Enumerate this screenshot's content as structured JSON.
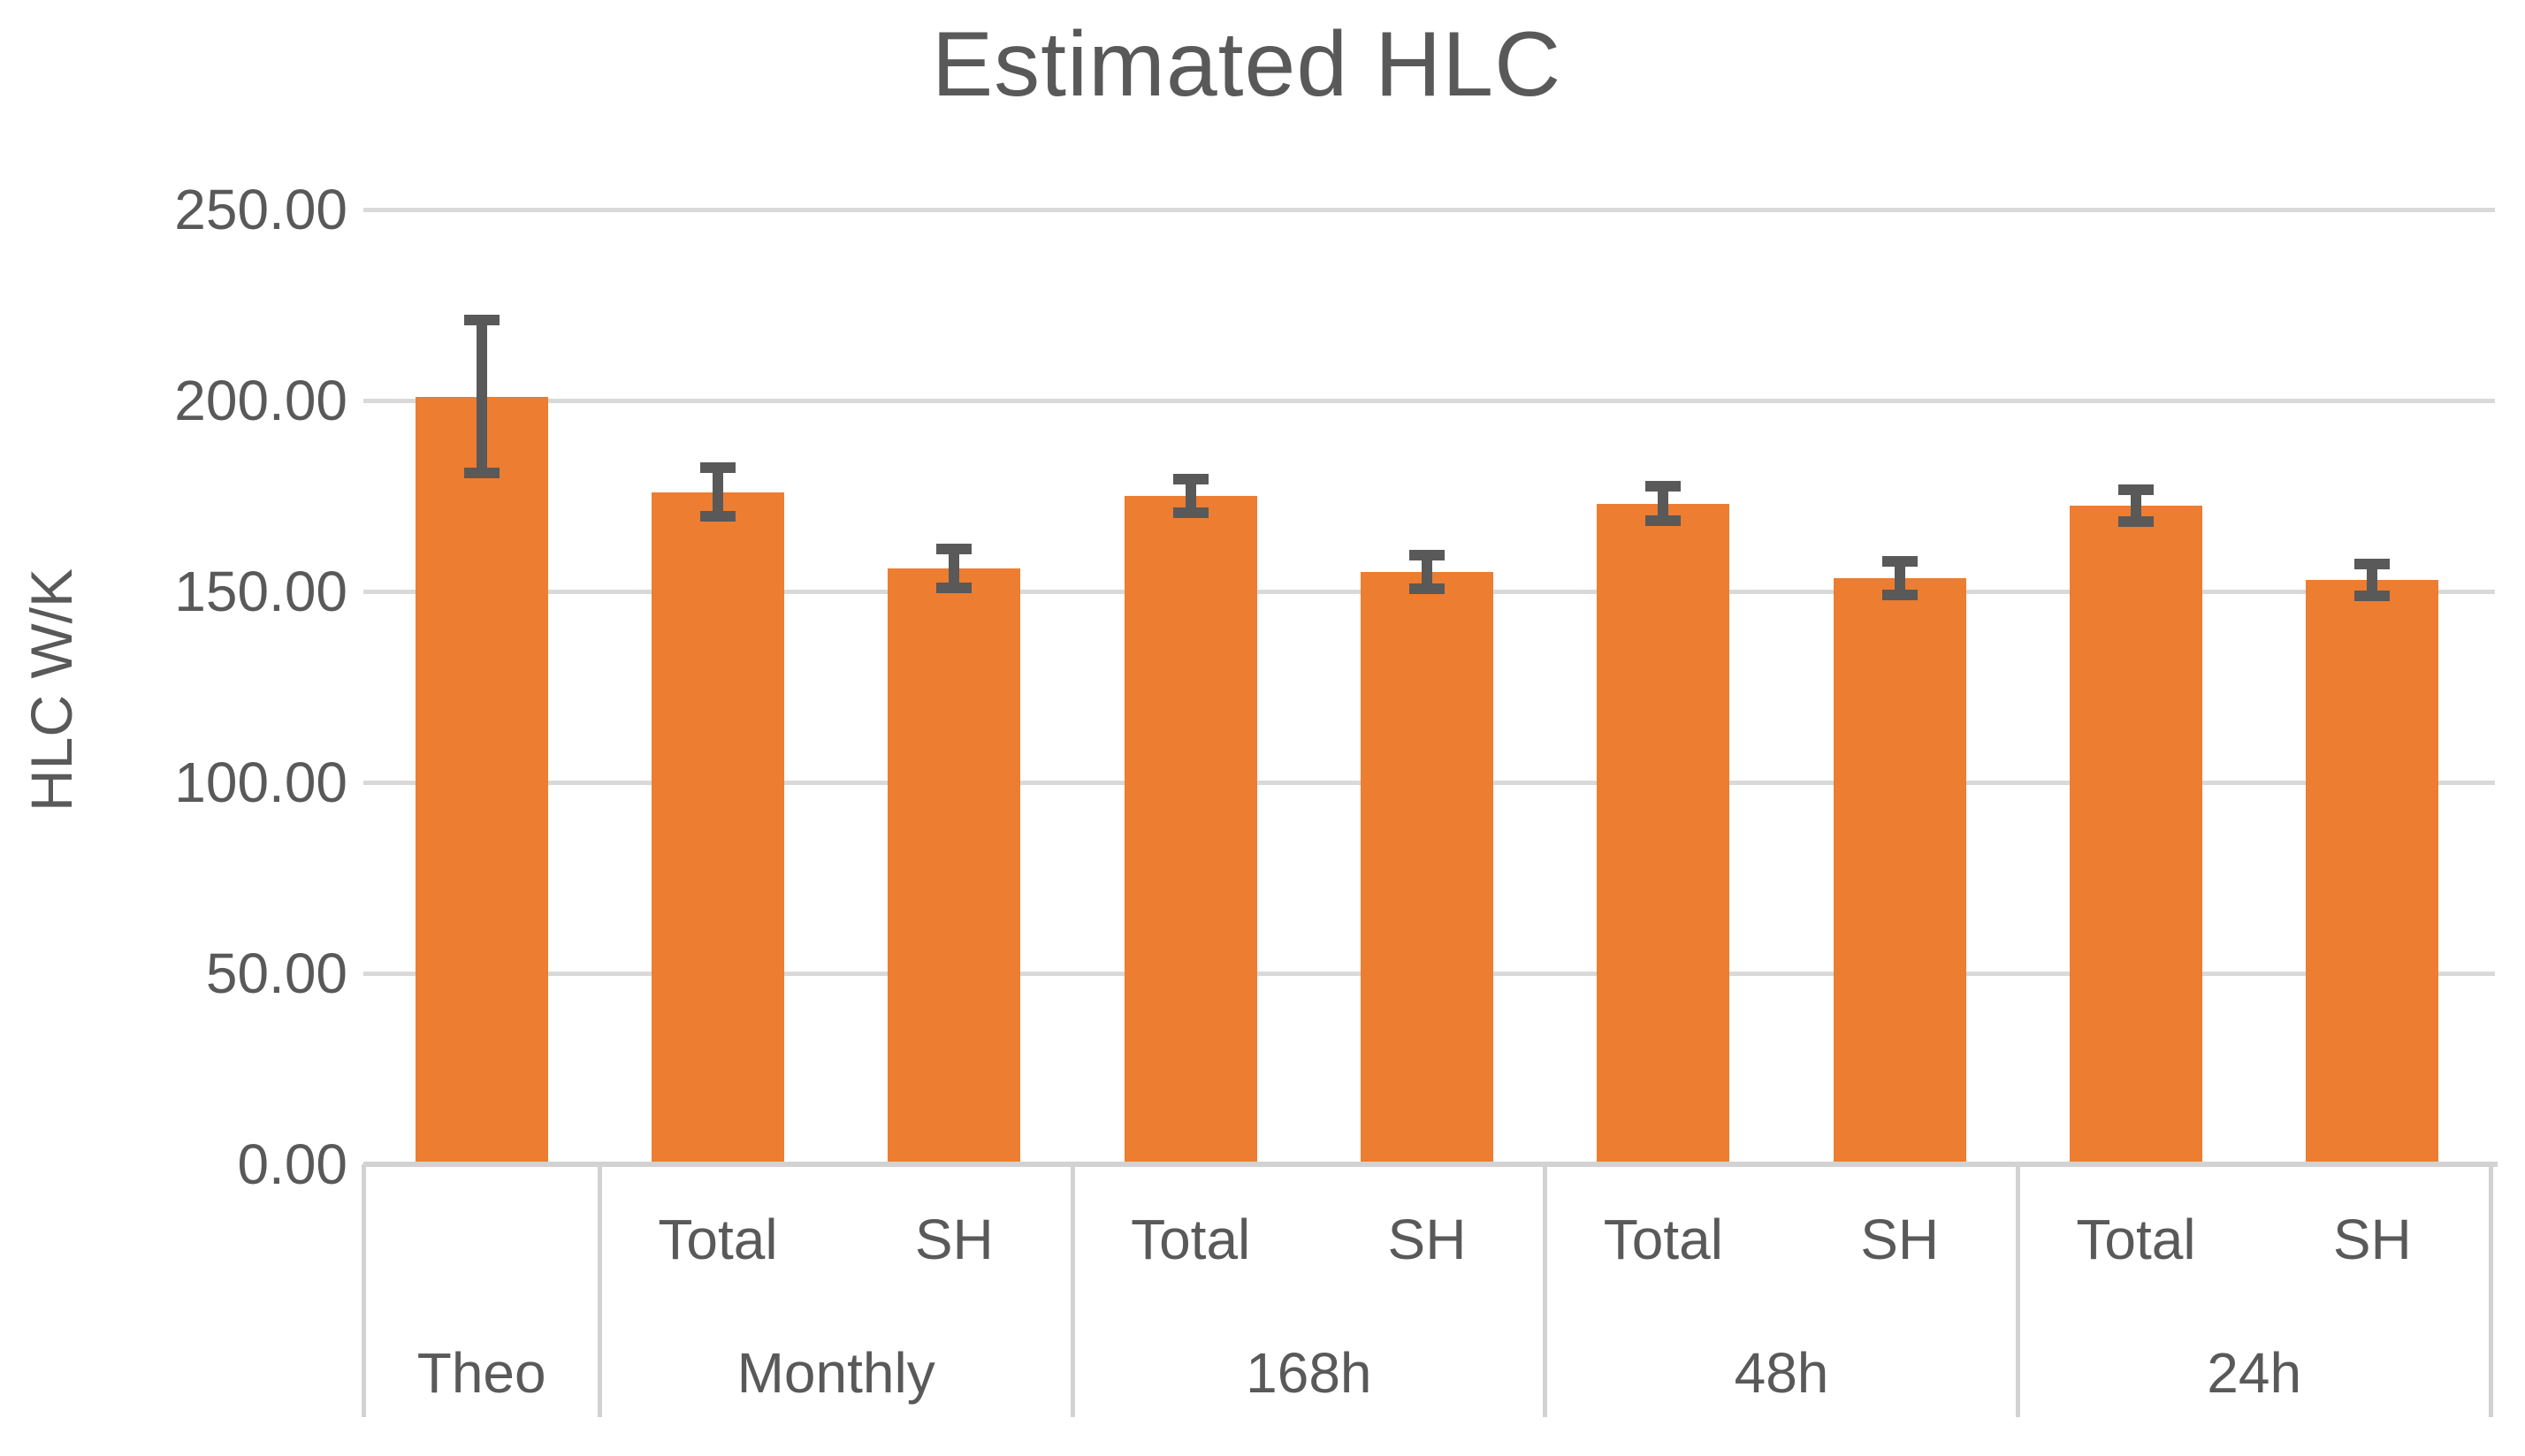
{
  "chart_data": {
    "type": "bar",
    "title": "Estimated HLC",
    "ylabel": "HLC W/K",
    "xlabel": "",
    "ylim": [
      0,
      250
    ],
    "ytick_step": 50,
    "ytick_labels": [
      "0.00",
      "50.00",
      "100.00",
      "150.00",
      "200.00",
      "250.00"
    ],
    "grid": true,
    "legend": "none",
    "error_bars": true,
    "colors": {
      "bar_fill": "#ED7D31",
      "error_bar": "#595959",
      "gridline": "#D9D9D9",
      "axis_line": "#D2D2D2",
      "text": "#595959"
    },
    "groups": [
      {
        "label": "Theo",
        "bars": [
          {
            "sub": "",
            "value": 201.0,
            "error": 20.0
          }
        ]
      },
      {
        "label": "Monthly",
        "bars": [
          {
            "sub": "Total",
            "value": 176.0,
            "error": 6.3
          },
          {
            "sub": "SH",
            "value": 156.0,
            "error": 5.0
          }
        ]
      },
      {
        "label": "168h",
        "bars": [
          {
            "sub": "Total",
            "value": 175.0,
            "error": 4.3
          },
          {
            "sub": "SH",
            "value": 155.0,
            "error": 4.4
          }
        ]
      },
      {
        "label": "48h",
        "bars": [
          {
            "sub": "Total",
            "value": 173.0,
            "error": 4.5
          },
          {
            "sub": "SH",
            "value": 153.5,
            "error": 4.4
          }
        ]
      },
      {
        "label": "24h",
        "bars": [
          {
            "sub": "Total",
            "value": 172.5,
            "error": 4.2
          },
          {
            "sub": "SH",
            "value": 153.0,
            "error": 4.2
          }
        ]
      }
    ]
  }
}
